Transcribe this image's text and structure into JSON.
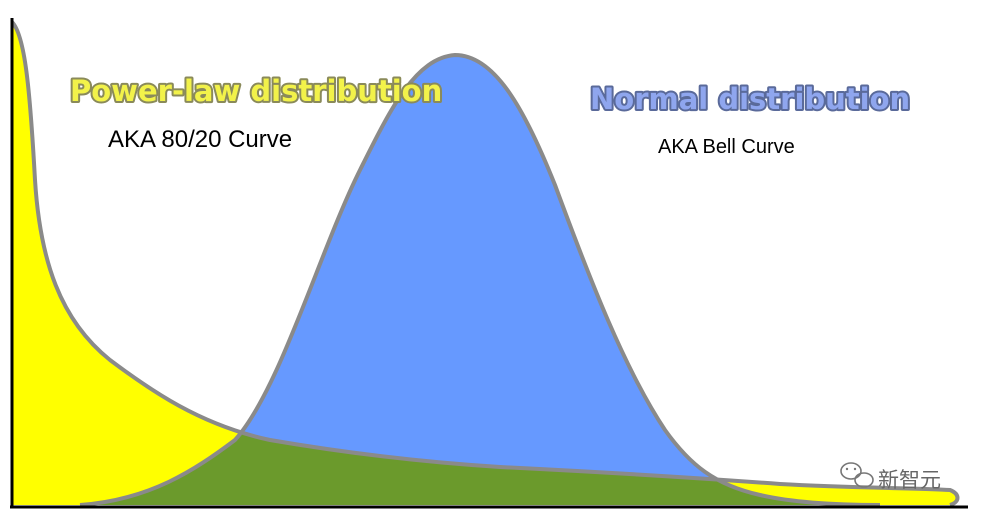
{
  "figure": {
    "power_law": {
      "title": "Power-law distribution",
      "subtitle": "AKA 80/20 Curve",
      "fill_color": "#ffff00",
      "title_color": "#f2f24a",
      "title_outline": "#8a8a5a"
    },
    "normal": {
      "title": "Normal distribution",
      "subtitle": "AKA Bell Curve",
      "fill_color": "#6699ff",
      "title_color": "#8fa6ee",
      "title_outline": "#5a6a9a"
    },
    "overlap_color": "#6b9a2c",
    "curve_outline_color": "#8a8a8a",
    "axis_color": "#000000",
    "watermark": {
      "text": "新智元",
      "icon": "wechat-icon"
    }
  }
}
